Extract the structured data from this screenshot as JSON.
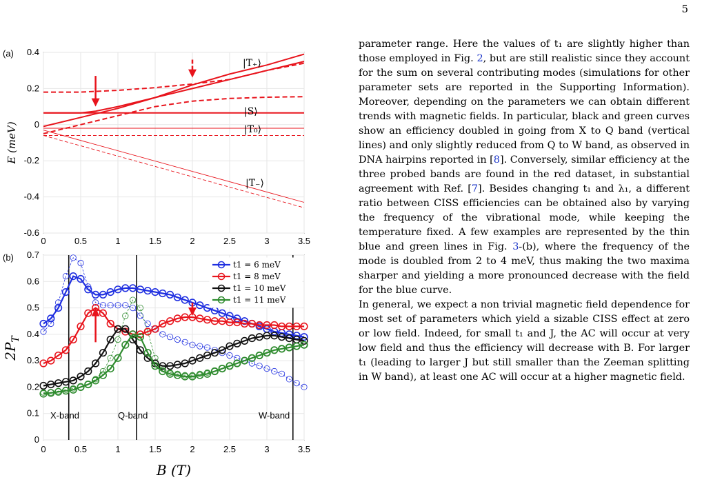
{
  "page": {
    "number": "5"
  },
  "figure": {
    "panel_a": {
      "label": "(a)",
      "ylabel": "E (meV)",
      "yticks": [
        "0.4",
        "0.2",
        "0",
        "-0.2",
        "-0.4",
        "-0.6"
      ],
      "xticks": [
        "0",
        "0.5",
        "1",
        "1.5",
        "2",
        "2.5",
        "3",
        "3.5"
      ],
      "state_labels": [
        "|T₊⟩",
        "|S⟩",
        "|T₀⟩",
        "|T₋⟩"
      ],
      "color": "#e8141c"
    },
    "panel_b": {
      "label": "(b)",
      "ylabel": "2P",
      "ylabel_sub": "T",
      "xlabel": "B (T)",
      "yticks": [
        "0.7",
        "0.6",
        "0.5",
        "0.4",
        "0.3",
        "0.2",
        "0.1",
        "0"
      ],
      "xticks": [
        "0",
        "0.5",
        "1",
        "1.5",
        "2",
        "2.5",
        "3",
        "3.5"
      ],
      "band_labels": [
        "X-band",
        "Q-band",
        "W-band"
      ]
    }
  },
  "chart_data": [
    {
      "type": "line",
      "panel": "(a)",
      "title": "",
      "xlabel": "",
      "ylabel": "E (meV)",
      "xlim": [
        0,
        3.5
      ],
      "ylim": [
        -0.6,
        0.4
      ],
      "grid": true,
      "annotations": [
        "|T+>",
        "|S>",
        "|T0>",
        "|T->"
      ],
      "arrows_at_B": [
        0.7,
        2.0
      ],
      "series": [
        {
          "name": "|T+>",
          "style": "solid",
          "x": [
            0,
            0.5,
            1,
            1.5,
            2,
            2.5,
            3,
            3.5
          ],
          "y": [
            -0.01,
            0.04,
            0.09,
            0.15,
            0.22,
            0.28,
            0.33,
            0.39
          ]
        },
        {
          "name": "|S>",
          "style": "solid",
          "x": [
            0,
            0.5,
            0.7,
            1,
            1.5,
            2,
            2.5,
            3,
            3.5
          ],
          "y": [
            0.065,
            0.065,
            0.075,
            0.1,
            0.15,
            0.2,
            0.25,
            0.3,
            0.35
          ]
        },
        {
          "style": "solid",
          "x": [
            0,
            0.5,
            1,
            1.5,
            2,
            3.5
          ],
          "y": [
            0.065,
            0.065,
            0.065,
            0.065,
            0.065,
            0.065
          ]
        },
        {
          "style": "dashed",
          "x": [
            0,
            0.5,
            1,
            1.5,
            2,
            2.5,
            3,
            3.5
          ],
          "y": [
            0.18,
            0.18,
            0.19,
            0.205,
            0.225,
            0.25,
            0.3,
            0.34
          ]
        },
        {
          "style": "dashed",
          "x": [
            0,
            0.5,
            1,
            1.5,
            2,
            2.5,
            3,
            3.5
          ],
          "y": [
            -0.05,
            0.0,
            0.05,
            0.1,
            0.13,
            0.145,
            0.152,
            0.155
          ]
        },
        {
          "name": "|T0>",
          "style": "thin",
          "x": [
            0,
            3.5
          ],
          "y": [
            -0.02,
            -0.02
          ]
        },
        {
          "style": "thin-dashed",
          "x": [
            0,
            3.5
          ],
          "y": [
            -0.06,
            -0.06
          ]
        },
        {
          "name": "|T->",
          "style": "thin",
          "x": [
            0,
            3.5
          ],
          "y": [
            -0.03,
            -0.43
          ]
        },
        {
          "style": "thin-dashed",
          "x": [
            0,
            3.5
          ],
          "y": [
            -0.06,
            -0.46
          ]
        }
      ]
    },
    {
      "type": "line",
      "panel": "(b)",
      "title": "",
      "xlabel": "B (T)",
      "ylabel": "2P_T",
      "xlim": [
        0,
        3.5
      ],
      "ylim": [
        0,
        0.7
      ],
      "grid": true,
      "legend": "top-right",
      "band_lines_B": [
        0.34,
        1.25,
        3.35
      ],
      "arrows_at_B": [
        0.7,
        2.0
      ],
      "x": [
        0,
        0.1,
        0.2,
        0.3,
        0.4,
        0.5,
        0.6,
        0.7,
        0.8,
        0.9,
        1.0,
        1.1,
        1.2,
        1.3,
        1.4,
        1.5,
        1.6,
        1.7,
        1.8,
        1.9,
        2.0,
        2.1,
        2.2,
        2.3,
        2.4,
        2.5,
        2.6,
        2.7,
        2.8,
        2.9,
        3.0,
        3.1,
        3.2,
        3.3,
        3.4,
        3.5
      ],
      "series": [
        {
          "name": "t1 = 6 meV",
          "color": "#1f2fe0",
          "values": [
            0.44,
            0.46,
            0.5,
            0.56,
            0.62,
            0.61,
            0.57,
            0.55,
            0.55,
            0.56,
            0.57,
            0.575,
            0.575,
            0.57,
            0.565,
            0.56,
            0.555,
            0.55,
            0.54,
            0.53,
            0.52,
            0.51,
            0.5,
            0.49,
            0.48,
            0.47,
            0.46,
            0.45,
            0.44,
            0.43,
            0.42,
            0.41,
            0.405,
            0.4,
            0.395,
            0.39
          ]
        },
        {
          "name": "t1 = 8 meV",
          "color": "#e8141c",
          "values": [
            0.29,
            0.3,
            0.32,
            0.34,
            0.38,
            0.43,
            0.48,
            0.5,
            0.48,
            0.44,
            0.42,
            0.41,
            0.4,
            0.4,
            0.41,
            0.42,
            0.44,
            0.45,
            0.46,
            0.465,
            0.465,
            0.46,
            0.455,
            0.45,
            0.45,
            0.445,
            0.445,
            0.44,
            0.44,
            0.435,
            0.435,
            0.435,
            0.43,
            0.43,
            0.43,
            0.43
          ]
        },
        {
          "name": "t1 = 10 meV",
          "color": "#111111",
          "values": [
            0.205,
            0.21,
            0.215,
            0.22,
            0.225,
            0.24,
            0.26,
            0.29,
            0.33,
            0.38,
            0.42,
            0.42,
            0.38,
            0.34,
            0.31,
            0.29,
            0.28,
            0.28,
            0.285,
            0.29,
            0.3,
            0.31,
            0.32,
            0.33,
            0.34,
            0.355,
            0.365,
            0.375,
            0.385,
            0.39,
            0.395,
            0.395,
            0.39,
            0.385,
            0.38,
            0.375
          ]
        },
        {
          "name": "t1 = 11 meV",
          "color": "#2e8b2e",
          "values": [
            0.175,
            0.178,
            0.182,
            0.186,
            0.19,
            0.2,
            0.21,
            0.225,
            0.245,
            0.27,
            0.31,
            0.36,
            0.4,
            0.39,
            0.33,
            0.28,
            0.26,
            0.25,
            0.245,
            0.24,
            0.24,
            0.245,
            0.25,
            0.26,
            0.27,
            0.28,
            0.29,
            0.3,
            0.31,
            0.32,
            0.33,
            0.34,
            0.345,
            0.35,
            0.355,
            0.36
          ]
        },
        {
          "color": "#1f2fe0",
          "style": "thin",
          "values": [
            0.41,
            0.44,
            0.52,
            0.62,
            0.69,
            0.67,
            0.58,
            0.52,
            0.51,
            0.51,
            0.51,
            0.51,
            0.5,
            0.47,
            0.44,
            0.42,
            0.4,
            0.39,
            0.38,
            0.37,
            0.36,
            0.355,
            0.35,
            0.34,
            0.33,
            0.32,
            0.31,
            0.3,
            0.29,
            0.28,
            0.27,
            0.26,
            0.25,
            0.23,
            0.215,
            0.2
          ]
        },
        {
          "color": "#2e8b2e",
          "style": "thin",
          "values": [
            0.18,
            0.18,
            0.185,
            0.19,
            0.195,
            0.2,
            0.21,
            0.23,
            0.26,
            0.31,
            0.38,
            0.47,
            0.53,
            0.5,
            0.41,
            0.31,
            0.27,
            0.255,
            0.25,
            0.245,
            0.245,
            0.25,
            0.255,
            0.26,
            0.27,
            0.28,
            0.29,
            0.3,
            0.31,
            0.32,
            0.33,
            0.34,
            0.345,
            0.35,
            0.355,
            0.36
          ]
        }
      ]
    }
  ],
  "body": {
    "p1": [
      {
        "t": "parameter range. Here the values of t₁ are slightly higher than those employed in Fig. "
      },
      {
        "t": "2",
        "ref": true
      },
      {
        "t": ", but are still realistic since they account for the sum on several contributing modes (simulations for other parameter sets are reported in the Supporting Information). Moreover, depending on the parameters we can obtain different trends with magnetic fields. In particular, black and green curves show an efficiency doubled in going from X to Q band (vertical lines) and only slightly reduced from Q to W band, as observed in DNA hairpins reported in ["
      },
      {
        "t": "8",
        "ref": true
      },
      {
        "t": "]. Conversely, similar efficiency at the three probed bands are found in the red dataset, in substantial agreement with Ref. ["
      },
      {
        "t": "7",
        "ref": true
      },
      {
        "t": "]. Besides changing t₁ and λ₁, a different ratio between CISS efficiencies can be obtained also by varying the frequency of the vibrational mode, while keeping the temperature fixed. A few examples are represented by the thin blue and green lines in Fig. "
      },
      {
        "t": "3",
        "ref": true
      },
      {
        "t": "-(b), where the frequency of the mode is doubled from 2 to 4 meV, thus making the two maxima sharper and yielding a more pronounced decrease with the field for the blue curve."
      }
    ],
    "p2": "In general, we expect a non trivial magnetic field dependence for most set of parameters which yield a sizable CISS effect at zero or low field. Indeed, for small t₁ and J, the AC will occur at very low field and thus the efficiency will decrease with B. For larger t₁ (leading to larger J but still smaller than the Zeeman splitting in W band), at least one AC will occur at a higher magnetic field."
  }
}
